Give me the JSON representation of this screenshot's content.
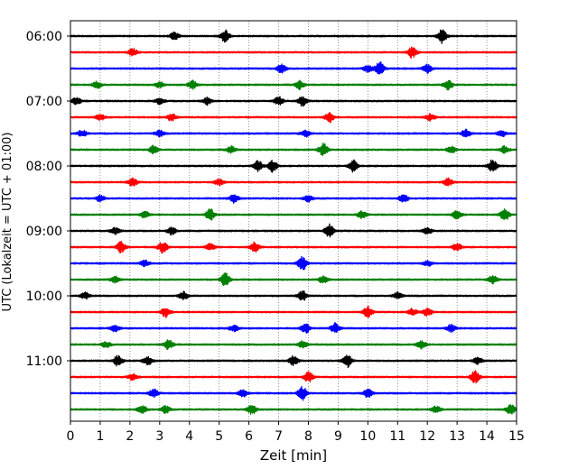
{
  "chart_data": {
    "type": "line",
    "title": "",
    "xlabel": "Zeit  [min]",
    "ylabel": "UTC (Lokalzeit = UTC + 01:00)",
    "xlim": [
      0,
      15
    ],
    "x_ticks": [
      "0",
      "1",
      "2",
      "3",
      "4",
      "5",
      "6",
      "7",
      "8",
      "9",
      "10",
      "11",
      "12",
      "13",
      "14",
      "15"
    ],
    "y_ticks": [
      "06:00",
      "07:00",
      "08:00",
      "09:00",
      "10:00",
      "11:00"
    ],
    "grid": "vertical dotted lines at each minute",
    "trace_interval_minutes": 15,
    "color_cycle": [
      "#000000",
      "#ff0000",
      "#0000ff",
      "#008000"
    ],
    "traces": [
      {
        "start": "06:00",
        "events": [
          {
            "x": 3.5,
            "amp": 0.22
          },
          {
            "x": 5.2,
            "amp": 0.35
          },
          {
            "x": 12.5,
            "amp": 0.42
          }
        ]
      },
      {
        "start": "06:15",
        "events": [
          {
            "x": 2.1,
            "amp": 0.22
          },
          {
            "x": 11.5,
            "amp": 0.35
          }
        ]
      },
      {
        "start": "06:30",
        "events": [
          {
            "x": 7.1,
            "amp": 0.25
          },
          {
            "x": 10.0,
            "amp": 0.2
          },
          {
            "x": 10.4,
            "amp": 0.45
          },
          {
            "x": 12.0,
            "amp": 0.25
          }
        ]
      },
      {
        "start": "06:45",
        "events": [
          {
            "x": 0.9,
            "amp": 0.2
          },
          {
            "x": 3.0,
            "amp": 0.18
          },
          {
            "x": 4.1,
            "amp": 0.25
          },
          {
            "x": 7.7,
            "amp": 0.25
          },
          {
            "x": 12.7,
            "amp": 0.3
          }
        ]
      },
      {
        "start": "07:00",
        "events": [
          {
            "x": 0.2,
            "amp": 0.22
          },
          {
            "x": 3.0,
            "amp": 0.18
          },
          {
            "x": 4.6,
            "amp": 0.22
          },
          {
            "x": 7.0,
            "amp": 0.25
          },
          {
            "x": 7.8,
            "amp": 0.3
          }
        ]
      },
      {
        "start": "07:15",
        "events": [
          {
            "x": 1.0,
            "amp": 0.18
          },
          {
            "x": 3.4,
            "amp": 0.22
          },
          {
            "x": 8.7,
            "amp": 0.3
          },
          {
            "x": 12.1,
            "amp": 0.2
          }
        ]
      },
      {
        "start": "07:30",
        "events": [
          {
            "x": 0.4,
            "amp": 0.2
          },
          {
            "x": 3.0,
            "amp": 0.18
          },
          {
            "x": 7.9,
            "amp": 0.2
          },
          {
            "x": 13.3,
            "amp": 0.25
          },
          {
            "x": 14.5,
            "amp": 0.2
          }
        ]
      },
      {
        "start": "07:45",
        "events": [
          {
            "x": 2.8,
            "amp": 0.25
          },
          {
            "x": 5.4,
            "amp": 0.2
          },
          {
            "x": 8.5,
            "amp": 0.38
          },
          {
            "x": 12.8,
            "amp": 0.2
          },
          {
            "x": 14.6,
            "amp": 0.2
          }
        ]
      },
      {
        "start": "08:00",
        "events": [
          {
            "x": 6.3,
            "amp": 0.32
          },
          {
            "x": 6.8,
            "amp": 0.35
          },
          {
            "x": 9.5,
            "amp": 0.35
          },
          {
            "x": 14.2,
            "amp": 0.4
          }
        ]
      },
      {
        "start": "08:15",
        "events": [
          {
            "x": 2.1,
            "amp": 0.25
          },
          {
            "x": 5.0,
            "amp": 0.18
          },
          {
            "x": 12.7,
            "amp": 0.22
          }
        ]
      },
      {
        "start": "08:30",
        "events": [
          {
            "x": 1.0,
            "amp": 0.18
          },
          {
            "x": 5.5,
            "amp": 0.25
          },
          {
            "x": 8.0,
            "amp": 0.2
          },
          {
            "x": 11.2,
            "amp": 0.25
          }
        ]
      },
      {
        "start": "08:45",
        "events": [
          {
            "x": 2.5,
            "amp": 0.2
          },
          {
            "x": 4.7,
            "amp": 0.35
          },
          {
            "x": 9.8,
            "amp": 0.22
          },
          {
            "x": 13.0,
            "amp": 0.25
          },
          {
            "x": 14.6,
            "amp": 0.38
          }
        ]
      },
      {
        "start": "09:00",
        "events": [
          {
            "x": 1.5,
            "amp": 0.2
          },
          {
            "x": 3.4,
            "amp": 0.22
          },
          {
            "x": 8.7,
            "amp": 0.42
          },
          {
            "x": 12.0,
            "amp": 0.2
          }
        ]
      },
      {
        "start": "09:15",
        "events": [
          {
            "x": 1.7,
            "amp": 0.32
          },
          {
            "x": 3.1,
            "amp": 0.35
          },
          {
            "x": 4.7,
            "amp": 0.2
          },
          {
            "x": 6.2,
            "amp": 0.28
          },
          {
            "x": 13.0,
            "amp": 0.25
          }
        ]
      },
      {
        "start": "09:30",
        "events": [
          {
            "x": 2.5,
            "amp": 0.18
          },
          {
            "x": 7.8,
            "amp": 0.4
          },
          {
            "x": 12.0,
            "amp": 0.18
          }
        ]
      },
      {
        "start": "09:45",
        "events": [
          {
            "x": 1.5,
            "amp": 0.18
          },
          {
            "x": 5.2,
            "amp": 0.4
          },
          {
            "x": 8.5,
            "amp": 0.2
          },
          {
            "x": 14.2,
            "amp": 0.25
          }
        ]
      },
      {
        "start": "10:00",
        "events": [
          {
            "x": 0.5,
            "amp": 0.2
          },
          {
            "x": 3.8,
            "amp": 0.25
          },
          {
            "x": 7.8,
            "amp": 0.3
          },
          {
            "x": 11.0,
            "amp": 0.2
          }
        ]
      },
      {
        "start": "10:15",
        "events": [
          {
            "x": 3.2,
            "amp": 0.3
          },
          {
            "x": 10.0,
            "amp": 0.35
          },
          {
            "x": 11.5,
            "amp": 0.22
          },
          {
            "x": 12.0,
            "amp": 0.25
          }
        ]
      },
      {
        "start": "10:30",
        "events": [
          {
            "x": 1.5,
            "amp": 0.18
          },
          {
            "x": 5.5,
            "amp": 0.18
          },
          {
            "x": 7.9,
            "amp": 0.28
          },
          {
            "x": 8.9,
            "amp": 0.32
          },
          {
            "x": 12.8,
            "amp": 0.22
          }
        ]
      },
      {
        "start": "10:45",
        "events": [
          {
            "x": 1.2,
            "amp": 0.18
          },
          {
            "x": 3.3,
            "amp": 0.3
          },
          {
            "x": 7.8,
            "amp": 0.22
          },
          {
            "x": 11.8,
            "amp": 0.25
          }
        ]
      },
      {
        "start": "11:00",
        "events": [
          {
            "x": 1.6,
            "amp": 0.32
          },
          {
            "x": 2.6,
            "amp": 0.25
          },
          {
            "x": 7.5,
            "amp": 0.28
          },
          {
            "x": 9.3,
            "amp": 0.4
          },
          {
            "x": 13.7,
            "amp": 0.2
          }
        ]
      },
      {
        "start": "11:15",
        "events": [
          {
            "x": 2.1,
            "amp": 0.18
          },
          {
            "x": 8.0,
            "amp": 0.32
          },
          {
            "x": 13.6,
            "amp": 0.38
          }
        ]
      },
      {
        "start": "11:30",
        "events": [
          {
            "x": 2.8,
            "amp": 0.28
          },
          {
            "x": 5.8,
            "amp": 0.22
          },
          {
            "x": 7.8,
            "amp": 0.42
          },
          {
            "x": 10.0,
            "amp": 0.25
          }
        ]
      },
      {
        "start": "11:45",
        "events": [
          {
            "x": 2.4,
            "amp": 0.25
          },
          {
            "x": 3.2,
            "amp": 0.22
          },
          {
            "x": 6.1,
            "amp": 0.28
          },
          {
            "x": 12.3,
            "amp": 0.2
          },
          {
            "x": 14.8,
            "amp": 0.3
          }
        ]
      }
    ]
  }
}
